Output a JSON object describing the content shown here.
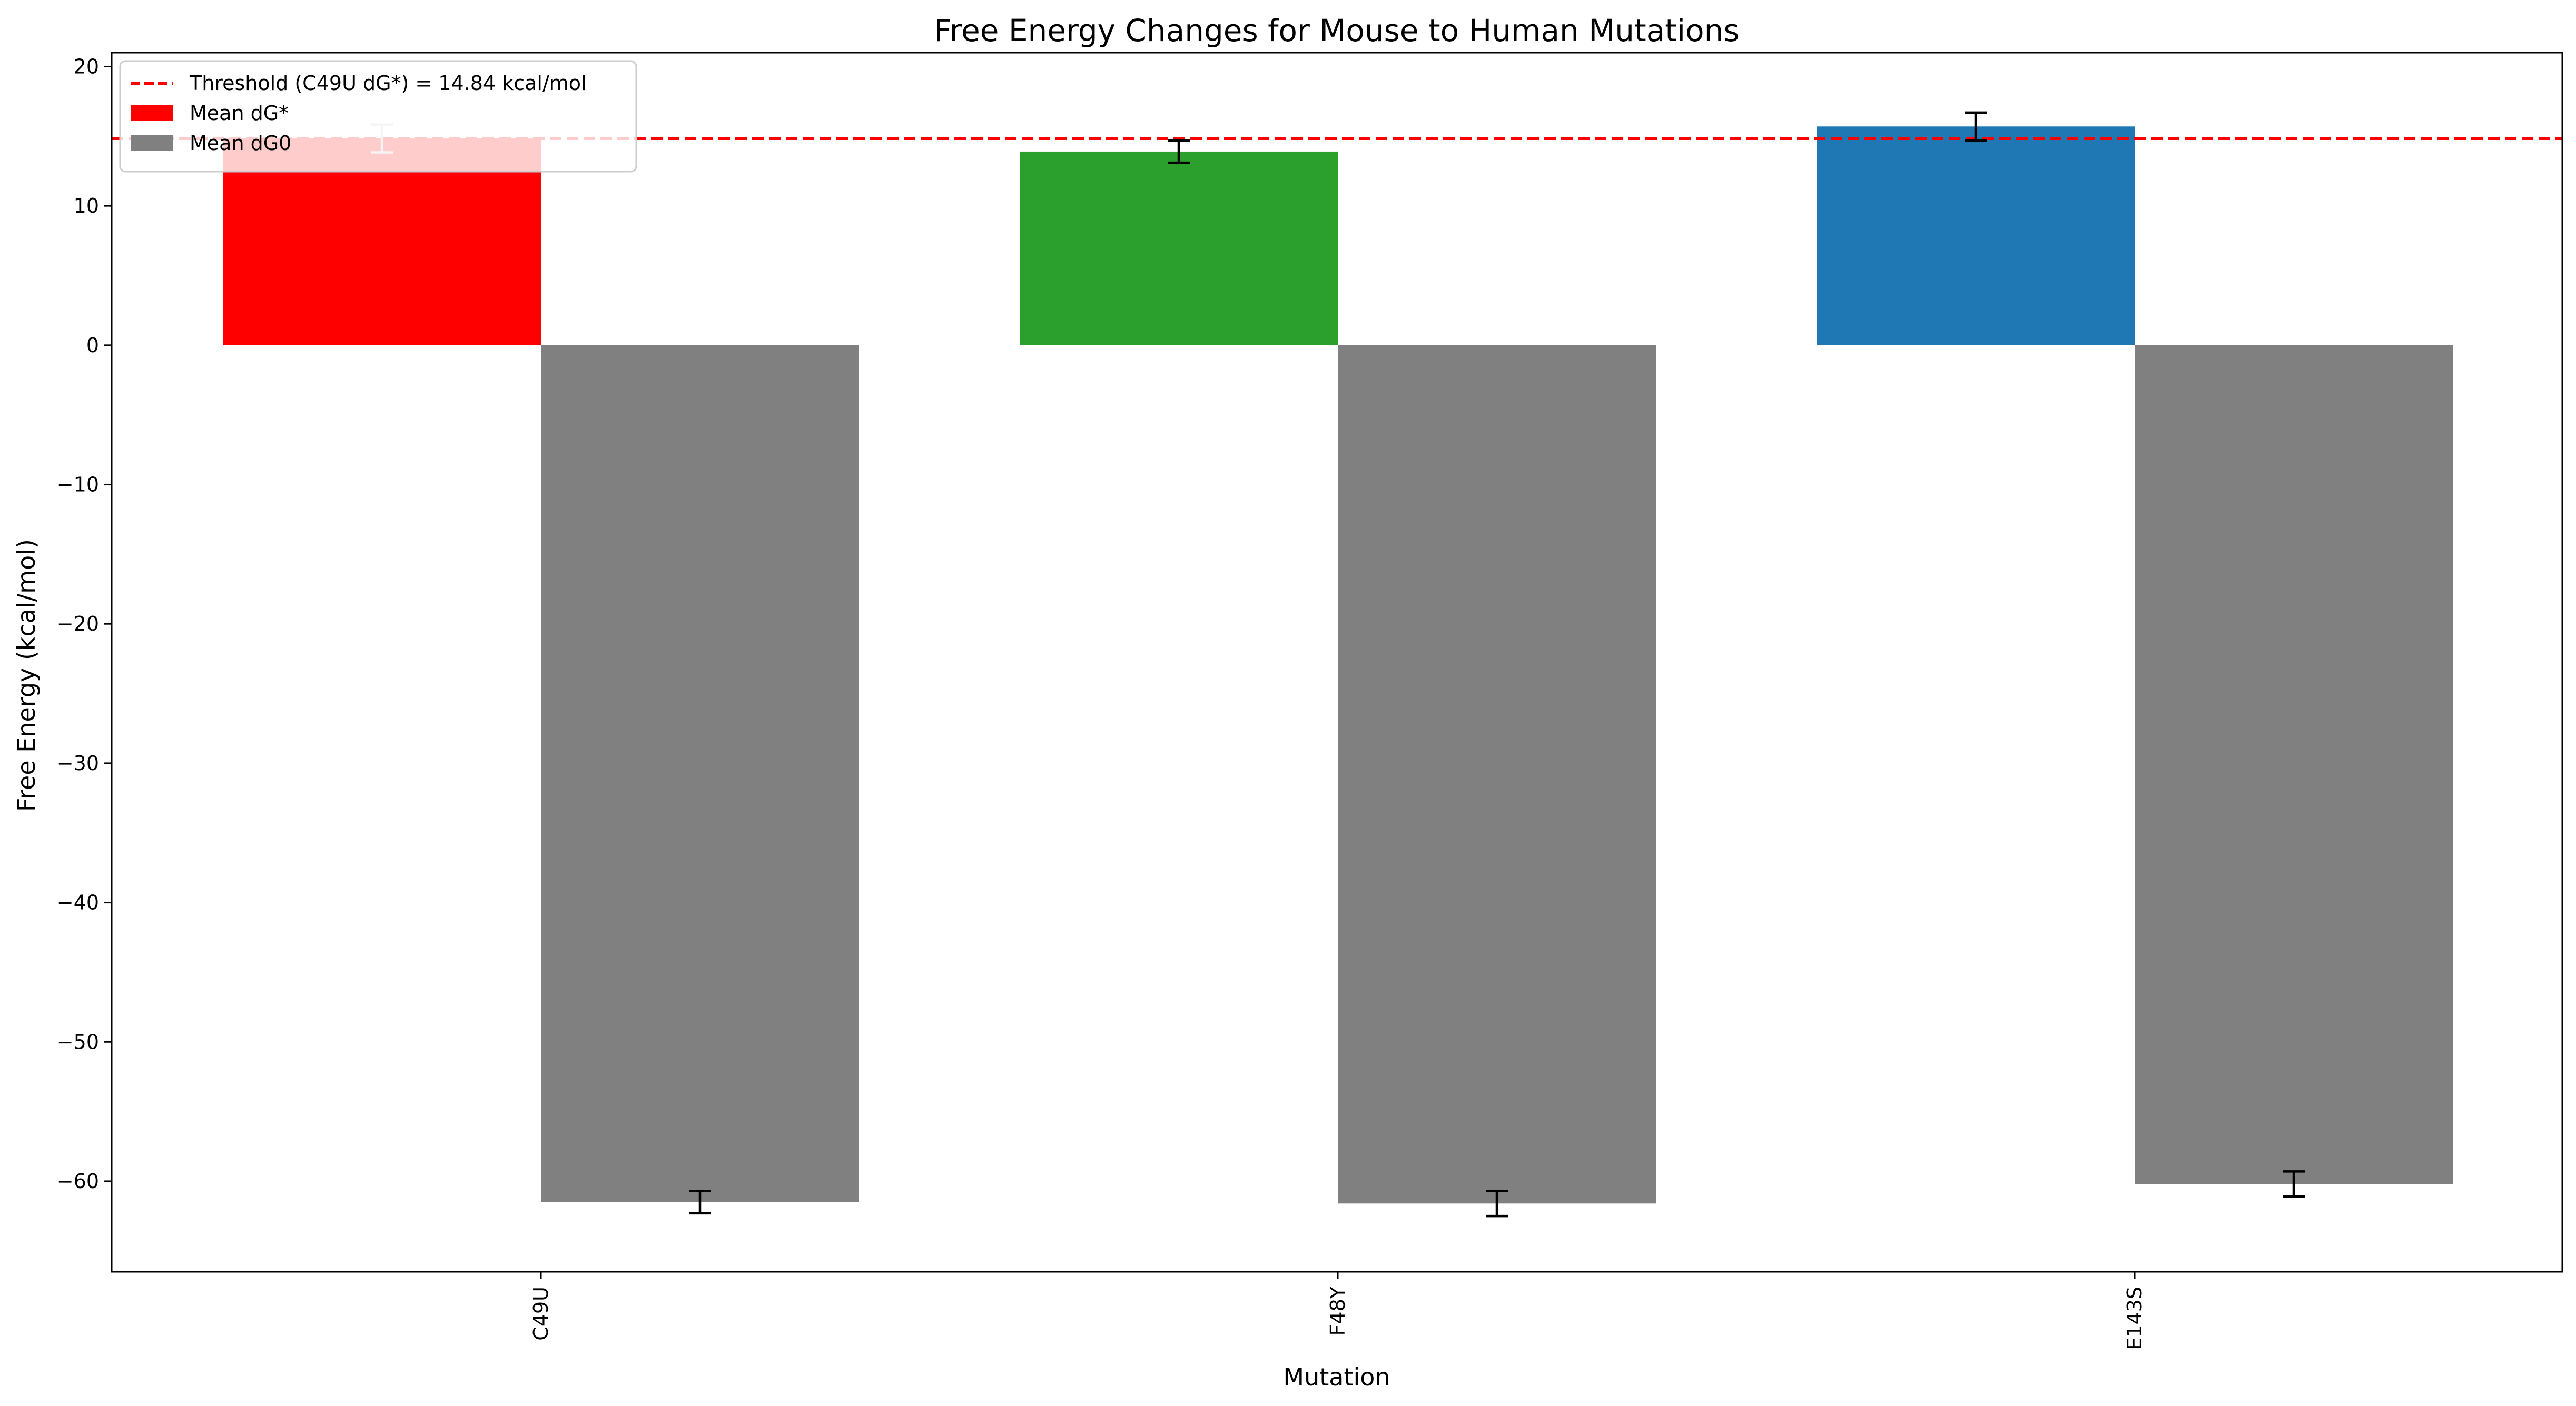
{
  "chart_data": {
    "type": "bar",
    "title": "Free Energy Changes for Mouse to Human Mutations",
    "xlabel": "Mutation",
    "ylabel": "Free Energy (kcal/mol)",
    "categories": [
      "C49U",
      "F48Y",
      "E143S"
    ],
    "series": [
      {
        "name": "Mean dG*",
        "values": [
          14.84,
          13.9,
          15.7
        ],
        "errors": [
          1.0,
          0.8,
          1.0
        ],
        "colors": [
          "#ff0000",
          "#2ca02c",
          "#1f77b4"
        ]
      },
      {
        "name": "Mean dG0",
        "values": [
          -61.5,
          -61.6,
          -60.2
        ],
        "errors": [
          0.8,
          0.9,
          0.9
        ],
        "colors": [
          "#808080",
          "#808080",
          "#808080"
        ]
      }
    ],
    "threshold": {
      "label": "Threshold (C49U dG*) = 14.84 kcal/mol",
      "value": 14.84,
      "color": "#ff0000"
    },
    "yticks": [
      20,
      10,
      0,
      -10,
      -20,
      -30,
      -40,
      -50,
      -60
    ],
    "ytick_labels": [
      "20",
      "10",
      "0",
      "−10",
      "−20",
      "−30",
      "−40",
      "−50",
      "−60"
    ],
    "ylim": [
      -66.5,
      21
    ],
    "grid": false,
    "legend": "upper-left"
  }
}
